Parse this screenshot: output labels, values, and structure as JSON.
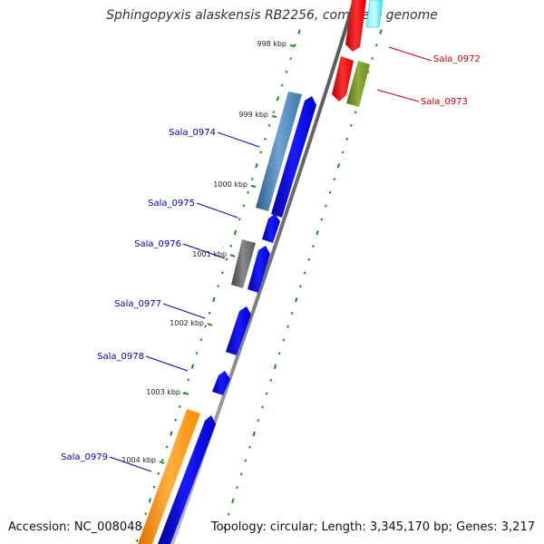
{
  "title": "Sphingopyxis alaskensis RB2256, complete genome",
  "footer": {
    "accession": "Accession: NC_008048",
    "info": "Topology: circular; Length: 3,345,170 bp; Genes: 3,217"
  },
  "kbp_ticks": [
    {
      "label": "998 kbp"
    },
    {
      "label": "999 kbp"
    },
    {
      "label": "1000 kbp"
    },
    {
      "label": "1001 kbp"
    },
    {
      "label": "1002 kbp"
    },
    {
      "label": "1003 kbp"
    },
    {
      "label": "1004 kbp"
    }
  ],
  "gene_labels": {
    "forward": [
      "Sala_0974",
      "Sala_0975",
      "Sala_0976",
      "Sala_0977",
      "Sala_0978",
      "Sala_0979"
    ],
    "reverse": [
      "Sala_0972",
      "Sala_0973"
    ]
  },
  "colors": {
    "forward_label": "#0000bb",
    "reverse_label": "#cc0000",
    "backbone": "#8a8a8a",
    "tick": "#1a8a1a",
    "cds_forward": "#0000ee",
    "cds_reverse": "#ee0000",
    "feature_steelblue": "#4682b4",
    "feature_gray": "#6a6a6a",
    "feature_orange": "#ff8c00",
    "feature_olive": "#6b8e23",
    "feature_cyan": "#00e5ee"
  }
}
